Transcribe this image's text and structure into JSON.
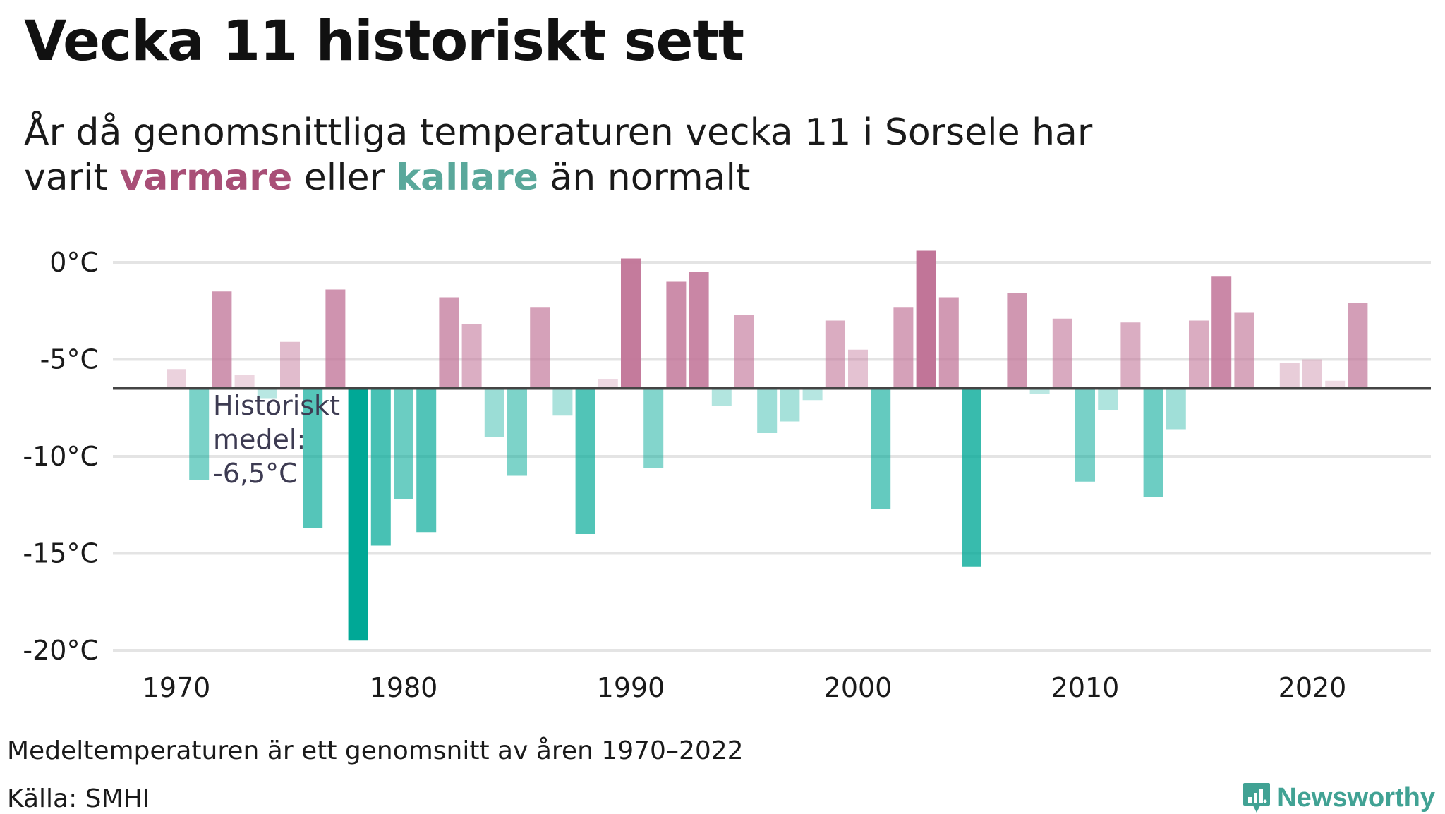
{
  "header": {
    "title": "Vecka 11 historiskt sett",
    "subtitle_part1": "År då genomsnittliga temperaturen vecka 11 i Sorsele har varit ",
    "subtitle_warm": "varmare",
    "subtitle_part2": " eller ",
    "subtitle_cold": "kallare",
    "subtitle_part3": " än normalt"
  },
  "colors": {
    "warm_full": "#c17598",
    "cold_full": "#00a896",
    "gridline": "#e4e4e4",
    "mean_line": "#444444",
    "brand": "#41a294"
  },
  "chart_data": {
    "type": "bar",
    "title": "Vecka 11 historiskt sett",
    "xlabel": "",
    "ylabel": "",
    "ylim": [
      -20,
      0.8
    ],
    "yticks": [
      0,
      -5,
      -10,
      -15,
      -20
    ],
    "ytick_labels": [
      "0°C",
      "-5°C",
      "-10°C",
      "-15°C",
      "-20°C"
    ],
    "xticks": [
      1970,
      1980,
      1990,
      2000,
      2010,
      2020
    ],
    "xtick_labels": [
      "1970",
      "1980",
      "1990",
      "2000",
      "2010",
      "2020"
    ],
    "baseline": -6.5,
    "annotation": [
      "Historiskt",
      "medel:",
      "-6,5°C"
    ],
    "years": [
      1970,
      1971,
      1972,
      1973,
      1974,
      1975,
      1976,
      1977,
      1978,
      1979,
      1980,
      1981,
      1982,
      1983,
      1984,
      1985,
      1986,
      1987,
      1988,
      1989,
      1990,
      1991,
      1992,
      1993,
      1994,
      1995,
      1996,
      1997,
      1998,
      1999,
      2000,
      2001,
      2002,
      2003,
      2004,
      2005,
      2006,
      2007,
      2008,
      2009,
      2010,
      2011,
      2012,
      2013,
      2014,
      2015,
      2016,
      2017,
      2018,
      2019,
      2020,
      2021,
      2022
    ],
    "values": [
      -5.5,
      -11.2,
      -1.5,
      -5.8,
      -7.0,
      -4.1,
      -13.7,
      -1.4,
      -19.5,
      -14.6,
      -12.2,
      -13.9,
      -1.8,
      -3.2,
      -9.0,
      -11.0,
      -2.3,
      -7.9,
      -14.0,
      -6.0,
      0.2,
      -10.6,
      -1.0,
      -0.5,
      -7.4,
      -2.7,
      -8.8,
      -8.2,
      -7.1,
      -3.0,
      -4.5,
      -12.7,
      -2.3,
      0.6,
      -1.8,
      -15.7,
      -6.4,
      -1.6,
      -6.8,
      -2.9,
      -11.3,
      -7.6,
      -3.1,
      -12.1,
      -8.6,
      -3.0,
      -0.7,
      -2.6,
      -6.4,
      -5.2,
      -5.0,
      -6.1,
      -2.1
    ]
  },
  "footer": {
    "note": "Medeltemperaturen är ett genomsnitt av åren 1970–2022",
    "source": "Källa: SMHI",
    "brand": "Newsworthy",
    "brand_icon": "newsworthy-logo-icon"
  }
}
